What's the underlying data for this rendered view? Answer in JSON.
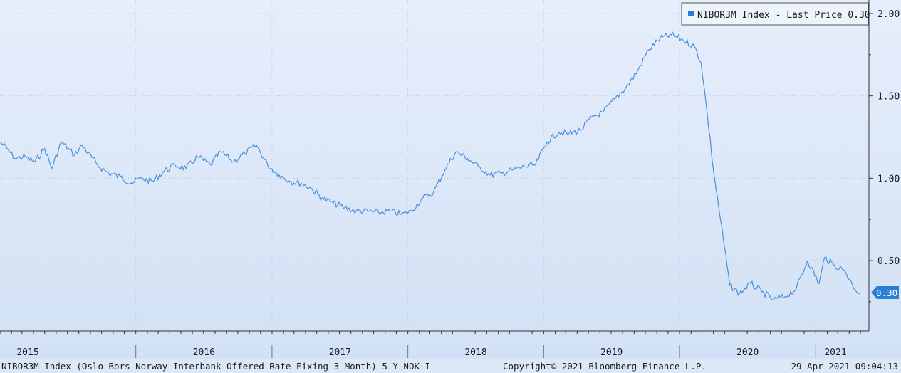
{
  "footer": {
    "description": "NIBOR3M Index (Oslo Bors Norway Interbank Offered Rate Fixing 3 Month) 5 Y NOK I",
    "copyright": "Copyright© 2021 Bloomberg Finance L.P.",
    "timestamp": "29-Apr-2021 09:04:13"
  },
  "legend": {
    "label": "NIBOR3M Index - Last Price 0.30"
  },
  "last_price_tag": "0.30",
  "colors": {
    "background_top": "#e6eefb",
    "background_bottom": "#d2e1f5",
    "line": "#4a90d9",
    "tag": "#2a7fd4",
    "axis": "#333333"
  },
  "chart_data": {
    "type": "line",
    "title": "",
    "xlabel": "",
    "ylabel": "",
    "x_ticks": [
      "2015",
      "2016",
      "2017",
      "2018",
      "2019",
      "2020",
      "2021"
    ],
    "y_ticks": [
      "0.50",
      "1.00",
      "1.50",
      "2.00"
    ],
    "ylim": [
      0.05,
      2.05
    ],
    "xlim": [
      "2015-01-01",
      "2021-05-01"
    ],
    "grid": true,
    "legend_position": "top-right",
    "series": [
      {
        "name": "NIBOR3M Index - Last Price",
        "last_value": 0.3,
        "points": [
          [
            "2015-01-01",
            1.22
          ],
          [
            "2015-01-20",
            1.18
          ],
          [
            "2015-02-10",
            1.12
          ],
          [
            "2015-03-10",
            1.13
          ],
          [
            "2015-04-05",
            1.1
          ],
          [
            "2015-05-01",
            1.18
          ],
          [
            "2015-05-20",
            1.06
          ],
          [
            "2015-06-15",
            1.22
          ],
          [
            "2015-07-20",
            1.14
          ],
          [
            "2015-08-10",
            1.2
          ],
          [
            "2015-09-20",
            1.08
          ],
          [
            "2015-10-20",
            1.03
          ],
          [
            "2015-11-20",
            1.01
          ],
          [
            "2015-12-20",
            0.97
          ],
          [
            "2016-01-15",
            1.0
          ],
          [
            "2016-02-15",
            0.98
          ],
          [
            "2016-03-15",
            1.04
          ],
          [
            "2016-04-15",
            1.08
          ],
          [
            "2016-05-15",
            1.06
          ],
          [
            "2016-06-15",
            1.13
          ],
          [
            "2016-07-20",
            1.08
          ],
          [
            "2016-08-15",
            1.16
          ],
          [
            "2016-09-20",
            1.1
          ],
          [
            "2016-10-20",
            1.15
          ],
          [
            "2016-11-20",
            1.2
          ],
          [
            "2016-12-20",
            1.08
          ],
          [
            "2017-01-20",
            1.02
          ],
          [
            "2017-02-20",
            0.98
          ],
          [
            "2017-03-20",
            0.97
          ],
          [
            "2017-04-15",
            0.94
          ],
          [
            "2017-05-15",
            0.88
          ],
          [
            "2017-06-15",
            0.85
          ],
          [
            "2017-07-15",
            0.82
          ],
          [
            "2017-08-15",
            0.8
          ],
          [
            "2017-09-15",
            0.8
          ],
          [
            "2017-10-15",
            0.79
          ],
          [
            "2017-11-15",
            0.8
          ],
          [
            "2017-12-15",
            0.78
          ],
          [
            "2018-01-10",
            0.8
          ],
          [
            "2018-02-10",
            0.88
          ],
          [
            "2018-03-10",
            0.91
          ],
          [
            "2018-04-10",
            1.05
          ],
          [
            "2018-05-10",
            1.16
          ],
          [
            "2018-06-10",
            1.12
          ],
          [
            "2018-07-10",
            1.07
          ],
          [
            "2018-08-10",
            1.02
          ],
          [
            "2018-09-10",
            1.03
          ],
          [
            "2018-10-10",
            1.05
          ],
          [
            "2018-11-10",
            1.07
          ],
          [
            "2018-12-10",
            1.08
          ],
          [
            "2019-01-10",
            1.22
          ],
          [
            "2019-02-10",
            1.28
          ],
          [
            "2019-03-10",
            1.27
          ],
          [
            "2019-04-10",
            1.29
          ],
          [
            "2019-05-10",
            1.37
          ],
          [
            "2019-06-10",
            1.4
          ],
          [
            "2019-07-10",
            1.48
          ],
          [
            "2019-08-10",
            1.55
          ],
          [
            "2019-09-10",
            1.65
          ],
          [
            "2019-10-10",
            1.78
          ],
          [
            "2019-11-10",
            1.85
          ],
          [
            "2019-12-10",
            1.87
          ],
          [
            "2020-01-10",
            1.84
          ],
          [
            "2020-02-10",
            1.8
          ],
          [
            "2020-02-28",
            1.7
          ],
          [
            "2020-03-15",
            1.4
          ],
          [
            "2020-04-01",
            1.05
          ],
          [
            "2020-04-20",
            0.75
          ],
          [
            "2020-05-15",
            0.35
          ],
          [
            "2020-06-10",
            0.3
          ],
          [
            "2020-07-10",
            0.36
          ],
          [
            "2020-08-10",
            0.31
          ],
          [
            "2020-09-10",
            0.26
          ],
          [
            "2020-10-10",
            0.28
          ],
          [
            "2020-11-10",
            0.33
          ],
          [
            "2020-12-10",
            0.5
          ],
          [
            "2021-01-10",
            0.36
          ],
          [
            "2021-01-25",
            0.52
          ],
          [
            "2021-02-20",
            0.47
          ],
          [
            "2021-03-20",
            0.44
          ],
          [
            "2021-04-10",
            0.35
          ],
          [
            "2021-04-29",
            0.3
          ]
        ]
      }
    ]
  }
}
